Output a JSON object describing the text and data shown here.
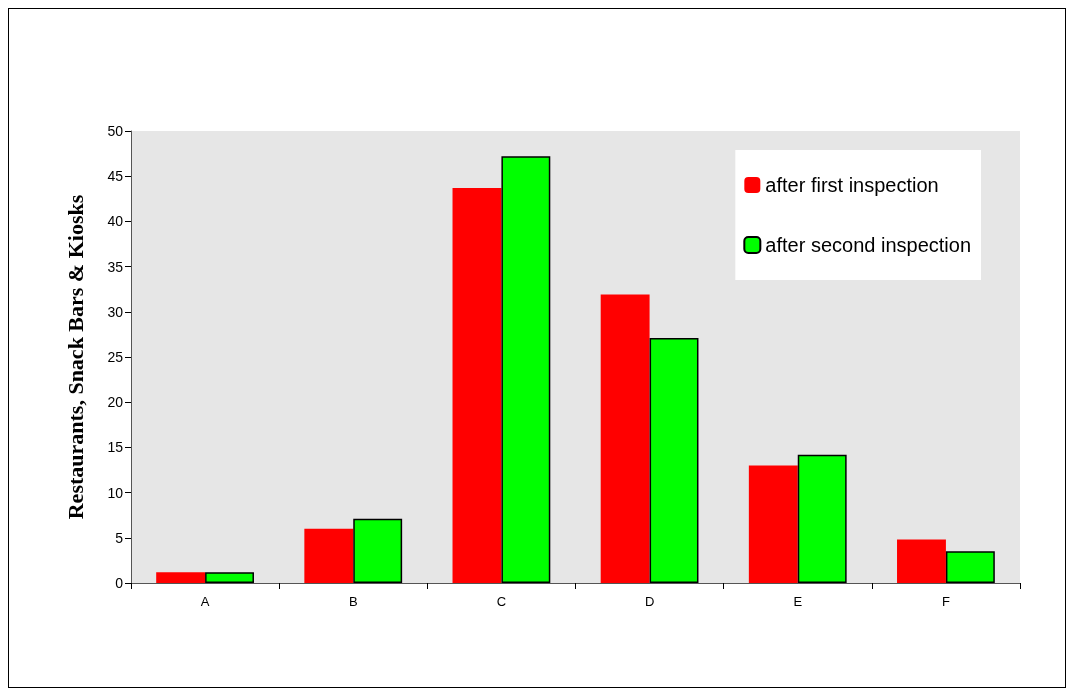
{
  "chart_data": {
    "type": "bar",
    "ylabel": "Restaurants, Snack Bars & Kiosks",
    "categories": [
      "A",
      "B",
      "C",
      "D",
      "E",
      "F"
    ],
    "series": [
      {
        "name": "after first inspection",
        "color": "#ff0000",
        "values": [
          1.2,
          6,
          43.7,
          31.9,
          13,
          4.8
        ]
      },
      {
        "name": "after second inspection",
        "color": "#00ff00",
        "values": [
          1.2,
          7.1,
          47.2,
          27.1,
          14.2,
          3.5
        ]
      }
    ],
    "ylim": [
      0,
      50
    ],
    "yticks": [
      0,
      5,
      10,
      15,
      20,
      25,
      30,
      35,
      40,
      45,
      50
    ],
    "grid": false,
    "legend": "top right"
  }
}
